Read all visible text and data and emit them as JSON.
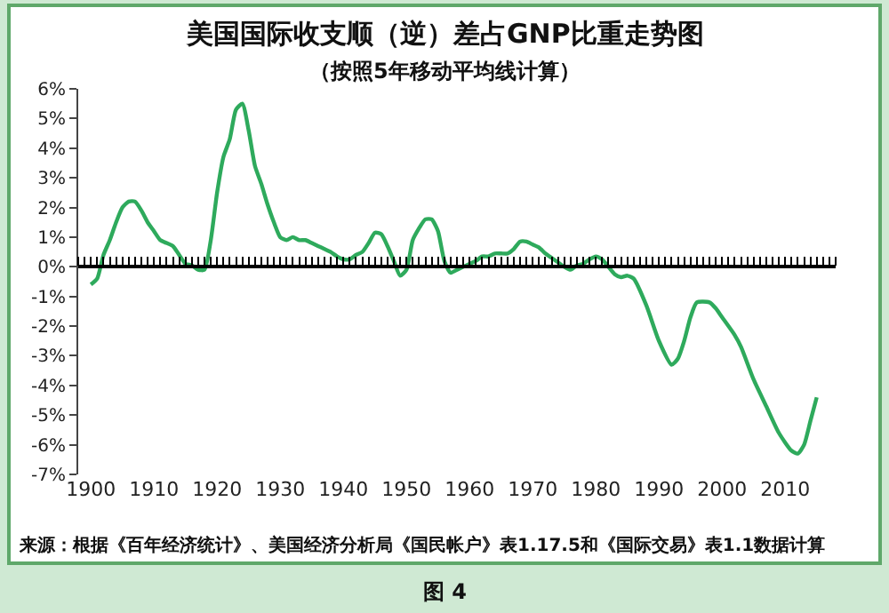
{
  "chart_data": {
    "type": "line",
    "title": "美国国际收支顺（逆）差占GNP比重走势图",
    "subtitle": "（按照5年移动平均线计算）",
    "x": [
      1900,
      1901,
      1902,
      1903,
      1904,
      1905,
      1906,
      1907,
      1908,
      1909,
      1910,
      1911,
      1912,
      1913,
      1914,
      1915,
      1916,
      1917,
      1918,
      1919,
      1920,
      1921,
      1922,
      1923,
      1924,
      1925,
      1926,
      1927,
      1928,
      1929,
      1930,
      1931,
      1932,
      1933,
      1934,
      1935,
      1936,
      1937,
      1938,
      1939,
      1940,
      1941,
      1942,
      1943,
      1944,
      1945,
      1946,
      1947,
      1948,
      1949,
      1950,
      1951,
      1952,
      1953,
      1954,
      1955,
      1956,
      1957,
      1958,
      1959,
      1960,
      1961,
      1962,
      1963,
      1964,
      1965,
      1966,
      1967,
      1968,
      1969,
      1970,
      1971,
      1972,
      1973,
      1974,
      1975,
      1976,
      1977,
      1978,
      1979,
      1980,
      1981,
      1982,
      1983,
      1984,
      1985,
      1986,
      1988,
      1990,
      1992,
      1993,
      1994,
      1995,
      1996,
      1998,
      1999,
      2000,
      2002,
      2003,
      2005,
      2007,
      2009,
      2011,
      2012,
      2013,
      2014,
      2015
    ],
    "series": [
      {
        "color": "#2eaa5c",
        "values": [
          -0.6,
          -0.4,
          0.4,
          0.9,
          1.5,
          2.0,
          2.2,
          2.2,
          1.9,
          1.5,
          1.2,
          0.9,
          0.8,
          0.7,
          0.4,
          0.1,
          0.05,
          -0.1,
          -0.1,
          0.9,
          2.5,
          3.7,
          4.3,
          5.3,
          5.5,
          4.6,
          3.4,
          2.8,
          2.1,
          1.5,
          1.0,
          0.9,
          1.0,
          0.9,
          0.9,
          0.8,
          0.7,
          0.6,
          0.5,
          0.35,
          0.25,
          0.25,
          0.4,
          0.5,
          0.8,
          1.15,
          1.1,
          0.7,
          0.2,
          -0.3,
          -0.1,
          0.9,
          1.3,
          1.6,
          1.6,
          1.2,
          0.2,
          -0.2,
          -0.1,
          0.0,
          0.1,
          0.2,
          0.35,
          0.35,
          0.45,
          0.45,
          0.45,
          0.6,
          0.85,
          0.85,
          0.75,
          0.65,
          0.45,
          0.3,
          0.15,
          0.0,
          -0.1,
          0.05,
          0.1,
          0.25,
          0.35,
          0.25,
          0.0,
          -0.25,
          -0.35,
          -0.3,
          -0.4,
          -1.3,
          -2.5,
          -3.3,
          -3.1,
          -2.5,
          -1.7,
          -1.2,
          -1.2,
          -1.4,
          -1.7,
          -2.3,
          -2.7,
          -3.8,
          -4.7,
          -5.6,
          -6.2,
          -6.3,
          -6.0,
          -5.2,
          -4.4
        ]
      }
    ],
    "xlim": [
      1898,
      2018
    ],
    "xticks": [
      1900,
      1910,
      1920,
      1930,
      1940,
      1950,
      1960,
      1970,
      1980,
      1990,
      2000,
      2010
    ],
    "ylim": [
      -7,
      6
    ],
    "yticks": [
      {
        "value": 6,
        "label": "6%"
      },
      {
        "value": 5,
        "label": "5%"
      },
      {
        "value": 4,
        "label": "4%"
      },
      {
        "value": 3,
        "label": "3%"
      },
      {
        "value": 2,
        "label": "2%"
      },
      {
        "value": 1,
        "label": "1%"
      },
      {
        "value": 0,
        "label": "0%"
      },
      {
        "value": -1,
        "label": "-1%"
      },
      {
        "value": -2,
        "label": "-2%"
      },
      {
        "value": -3,
        "label": "-3%"
      },
      {
        "value": -4,
        "label": "-4%"
      },
      {
        "value": -5,
        "label": "-5%"
      },
      {
        "value": -6,
        "label": "-6%"
      },
      {
        "value": -7,
        "label": "-7%"
      }
    ],
    "ref_lines": [
      {
        "axis": "y",
        "value": 0,
        "color": "#000000"
      }
    ],
    "annotations": [
      "来源：根据《百年经济统计》、美国经济分析局《国民帐户》表1.17.5和《国际交易》表1.1数据计算",
      "图 4"
    ],
    "marker": "none",
    "line_style": "solid"
  }
}
